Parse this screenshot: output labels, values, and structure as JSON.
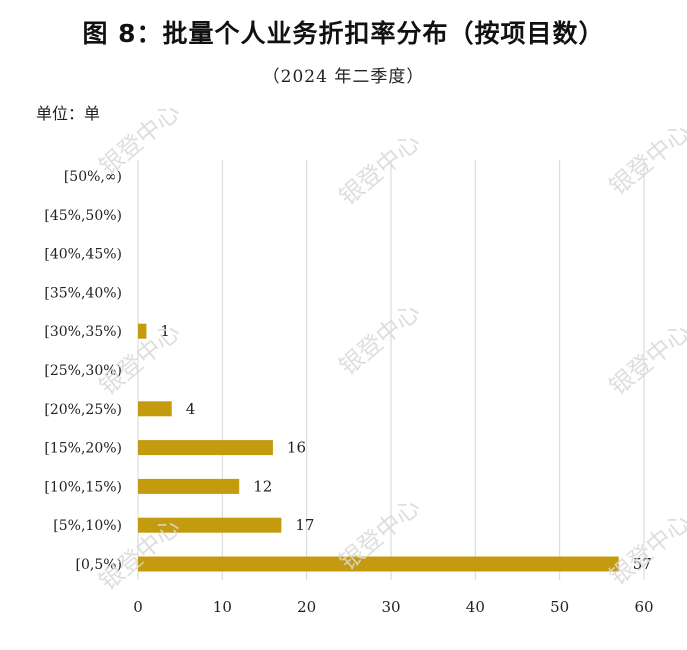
{
  "title": "图 8：批量个人业务折扣率分布（按项目数）",
  "subtitle": "（2024 年二季度）",
  "unit_label": "单位：单",
  "watermark_text": "银登中心",
  "chart_data": {
    "type": "bar",
    "orientation": "horizontal",
    "categories": [
      "[0,5%)",
      "[5%,10%)",
      "[10%,15%)",
      "[15%,20%)",
      "[20%,25%)",
      "[25%,30%)",
      "[30%,35%)",
      "[35%,40%)",
      "[40%,45%)",
      "[45%,50%)",
      "[50%,∞)"
    ],
    "values": [
      57,
      17,
      12,
      16,
      4,
      0,
      1,
      0,
      0,
      0,
      0
    ],
    "data_labels": [
      "57",
      "17",
      "12",
      "16",
      "4",
      "",
      "1",
      "",
      "",
      "",
      ""
    ],
    "xlim": [
      0,
      60
    ],
    "xticks": [
      "0",
      "10",
      "20",
      "30",
      "40",
      "50",
      "60"
    ],
    "grid": true,
    "bar_color": "#C49A0E"
  }
}
